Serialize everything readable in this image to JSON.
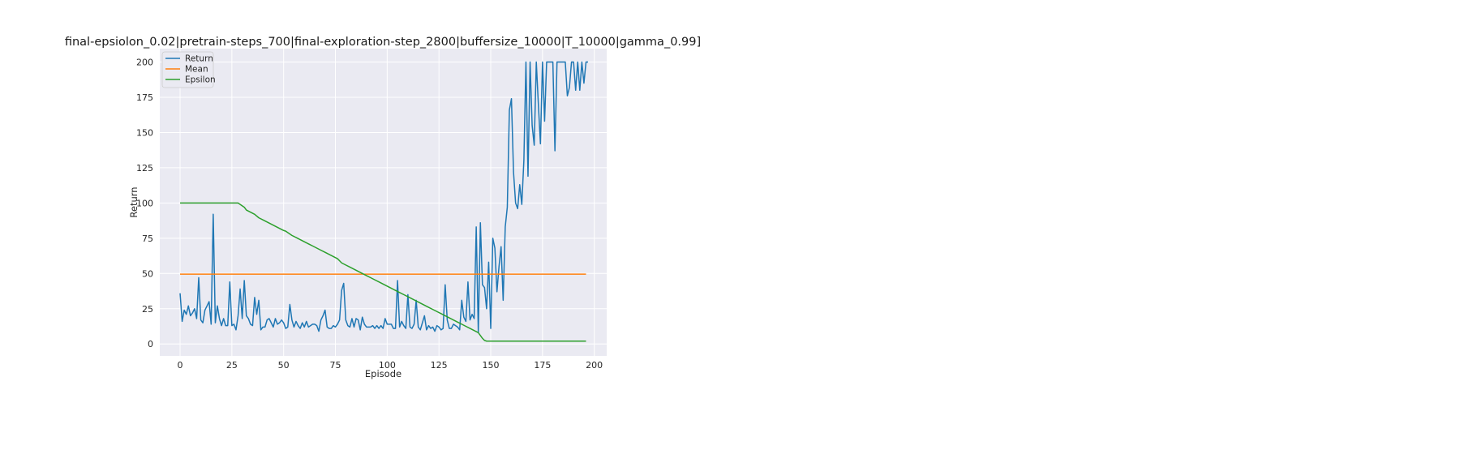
{
  "chart_data": {
    "type": "line",
    "title": "final-epsiolon_0.02|pretrain-steps_700|final-exploration-step_2800|buffersize_10000|T_10000|gamma_0.99]",
    "xlabel": "Episode",
    "ylabel": "Return",
    "xlim": [
      -9.8,
      206
    ],
    "ylim": [
      -8.5,
      209.5
    ],
    "xticks": [
      0,
      25,
      50,
      75,
      100,
      125,
      150,
      175,
      200
    ],
    "yticks": [
      0,
      25,
      50,
      75,
      100,
      125,
      150,
      175,
      200
    ],
    "grid": true,
    "legend_position": "top-left",
    "series": [
      {
        "name": "Return",
        "color": "#1f77b4",
        "values": [
          36,
          16,
          24,
          21,
          27,
          20,
          22,
          25,
          18,
          47,
          17,
          15,
          24,
          27,
          30,
          14,
          92,
          15,
          27,
          18,
          13,
          18,
          13,
          13,
          44,
          13,
          14,
          10,
          20,
          39,
          18,
          45,
          20,
          18,
          14,
          13,
          33,
          21,
          31,
          10,
          12,
          12,
          17,
          18,
          15,
          12,
          18,
          14,
          15,
          17,
          15,
          11,
          12,
          28,
          17,
          12,
          16,
          13,
          11,
          15,
          12,
          16,
          12,
          13,
          14,
          14,
          13,
          9,
          17,
          20,
          24,
          12,
          11,
          11,
          13,
          12,
          14,
          17,
          38,
          43,
          17,
          13,
          12,
          18,
          12,
          18,
          17,
          10,
          19,
          14,
          12,
          12,
          12,
          13,
          11,
          13,
          11,
          13,
          11,
          18,
          14,
          14,
          14,
          11,
          11,
          45,
          12,
          16,
          13,
          11,
          35,
          12,
          11,
          14,
          31,
          12,
          10,
          15,
          20,
          10,
          13,
          11,
          12,
          9,
          13,
          12,
          10,
          11,
          42,
          17,
          11,
          11,
          14,
          13,
          12,
          10,
          31,
          19,
          16,
          44,
          17,
          21,
          18,
          83,
          8,
          86,
          42,
          40,
          25,
          58,
          11,
          75,
          68,
          37,
          55,
          69,
          31,
          83,
          97,
          166,
          174,
          122,
          100,
          96,
          113,
          99,
          130,
          200,
          119,
          200,
          155,
          141,
          200,
          170,
          142,
          200,
          158,
          200,
          200,
          200,
          200,
          137,
          200,
          200,
          200,
          200,
          200,
          176,
          182,
          200,
          200,
          180,
          200,
          180,
          200,
          185,
          200,
          200
        ]
      },
      {
        "name": "Mean",
        "color": "#ff7f0e",
        "x": [
          0,
          196
        ],
        "values": [
          49.5,
          49.5
        ]
      },
      {
        "name": "Epsilon",
        "color": "#2ca02c",
        "x": [
          0,
          28,
          29,
          30,
          31,
          32,
          34,
          36,
          38,
          40,
          42,
          44,
          46,
          48,
          50,
          51,
          52,
          54,
          56,
          58,
          60,
          62,
          64,
          66,
          68,
          70,
          72,
          74,
          76,
          77,
          78,
          80,
          82,
          84,
          86,
          88,
          90,
          92,
          94,
          96,
          98,
          100,
          102,
          104,
          106,
          108,
          110,
          112,
          114,
          116,
          118,
          120,
          122,
          124,
          126,
          128,
          130,
          132,
          134,
          136,
          138,
          140,
          142,
          144,
          145,
          146,
          147,
          148,
          150,
          160,
          170,
          180,
          196
        ],
        "values": [
          100,
          100,
          99,
          98,
          97,
          95,
          93.5,
          92,
          89.5,
          88,
          86.5,
          85,
          83.5,
          82,
          80.5,
          80,
          79,
          77,
          75.5,
          74,
          72.5,
          71,
          69.5,
          68,
          66.5,
          65,
          63.5,
          62,
          60.5,
          59,
          57.5,
          56,
          54.5,
          53,
          51.5,
          50,
          48.5,
          47,
          45.5,
          44,
          42.5,
          41,
          39.5,
          38,
          36.5,
          35,
          33.5,
          32,
          30.5,
          29,
          27.5,
          26,
          24.5,
          23,
          21.5,
          20,
          18.5,
          17,
          15.5,
          14,
          12.5,
          11,
          9.5,
          8,
          6,
          4,
          2.5,
          2,
          2,
          2,
          2,
          2,
          2
        ]
      }
    ]
  }
}
